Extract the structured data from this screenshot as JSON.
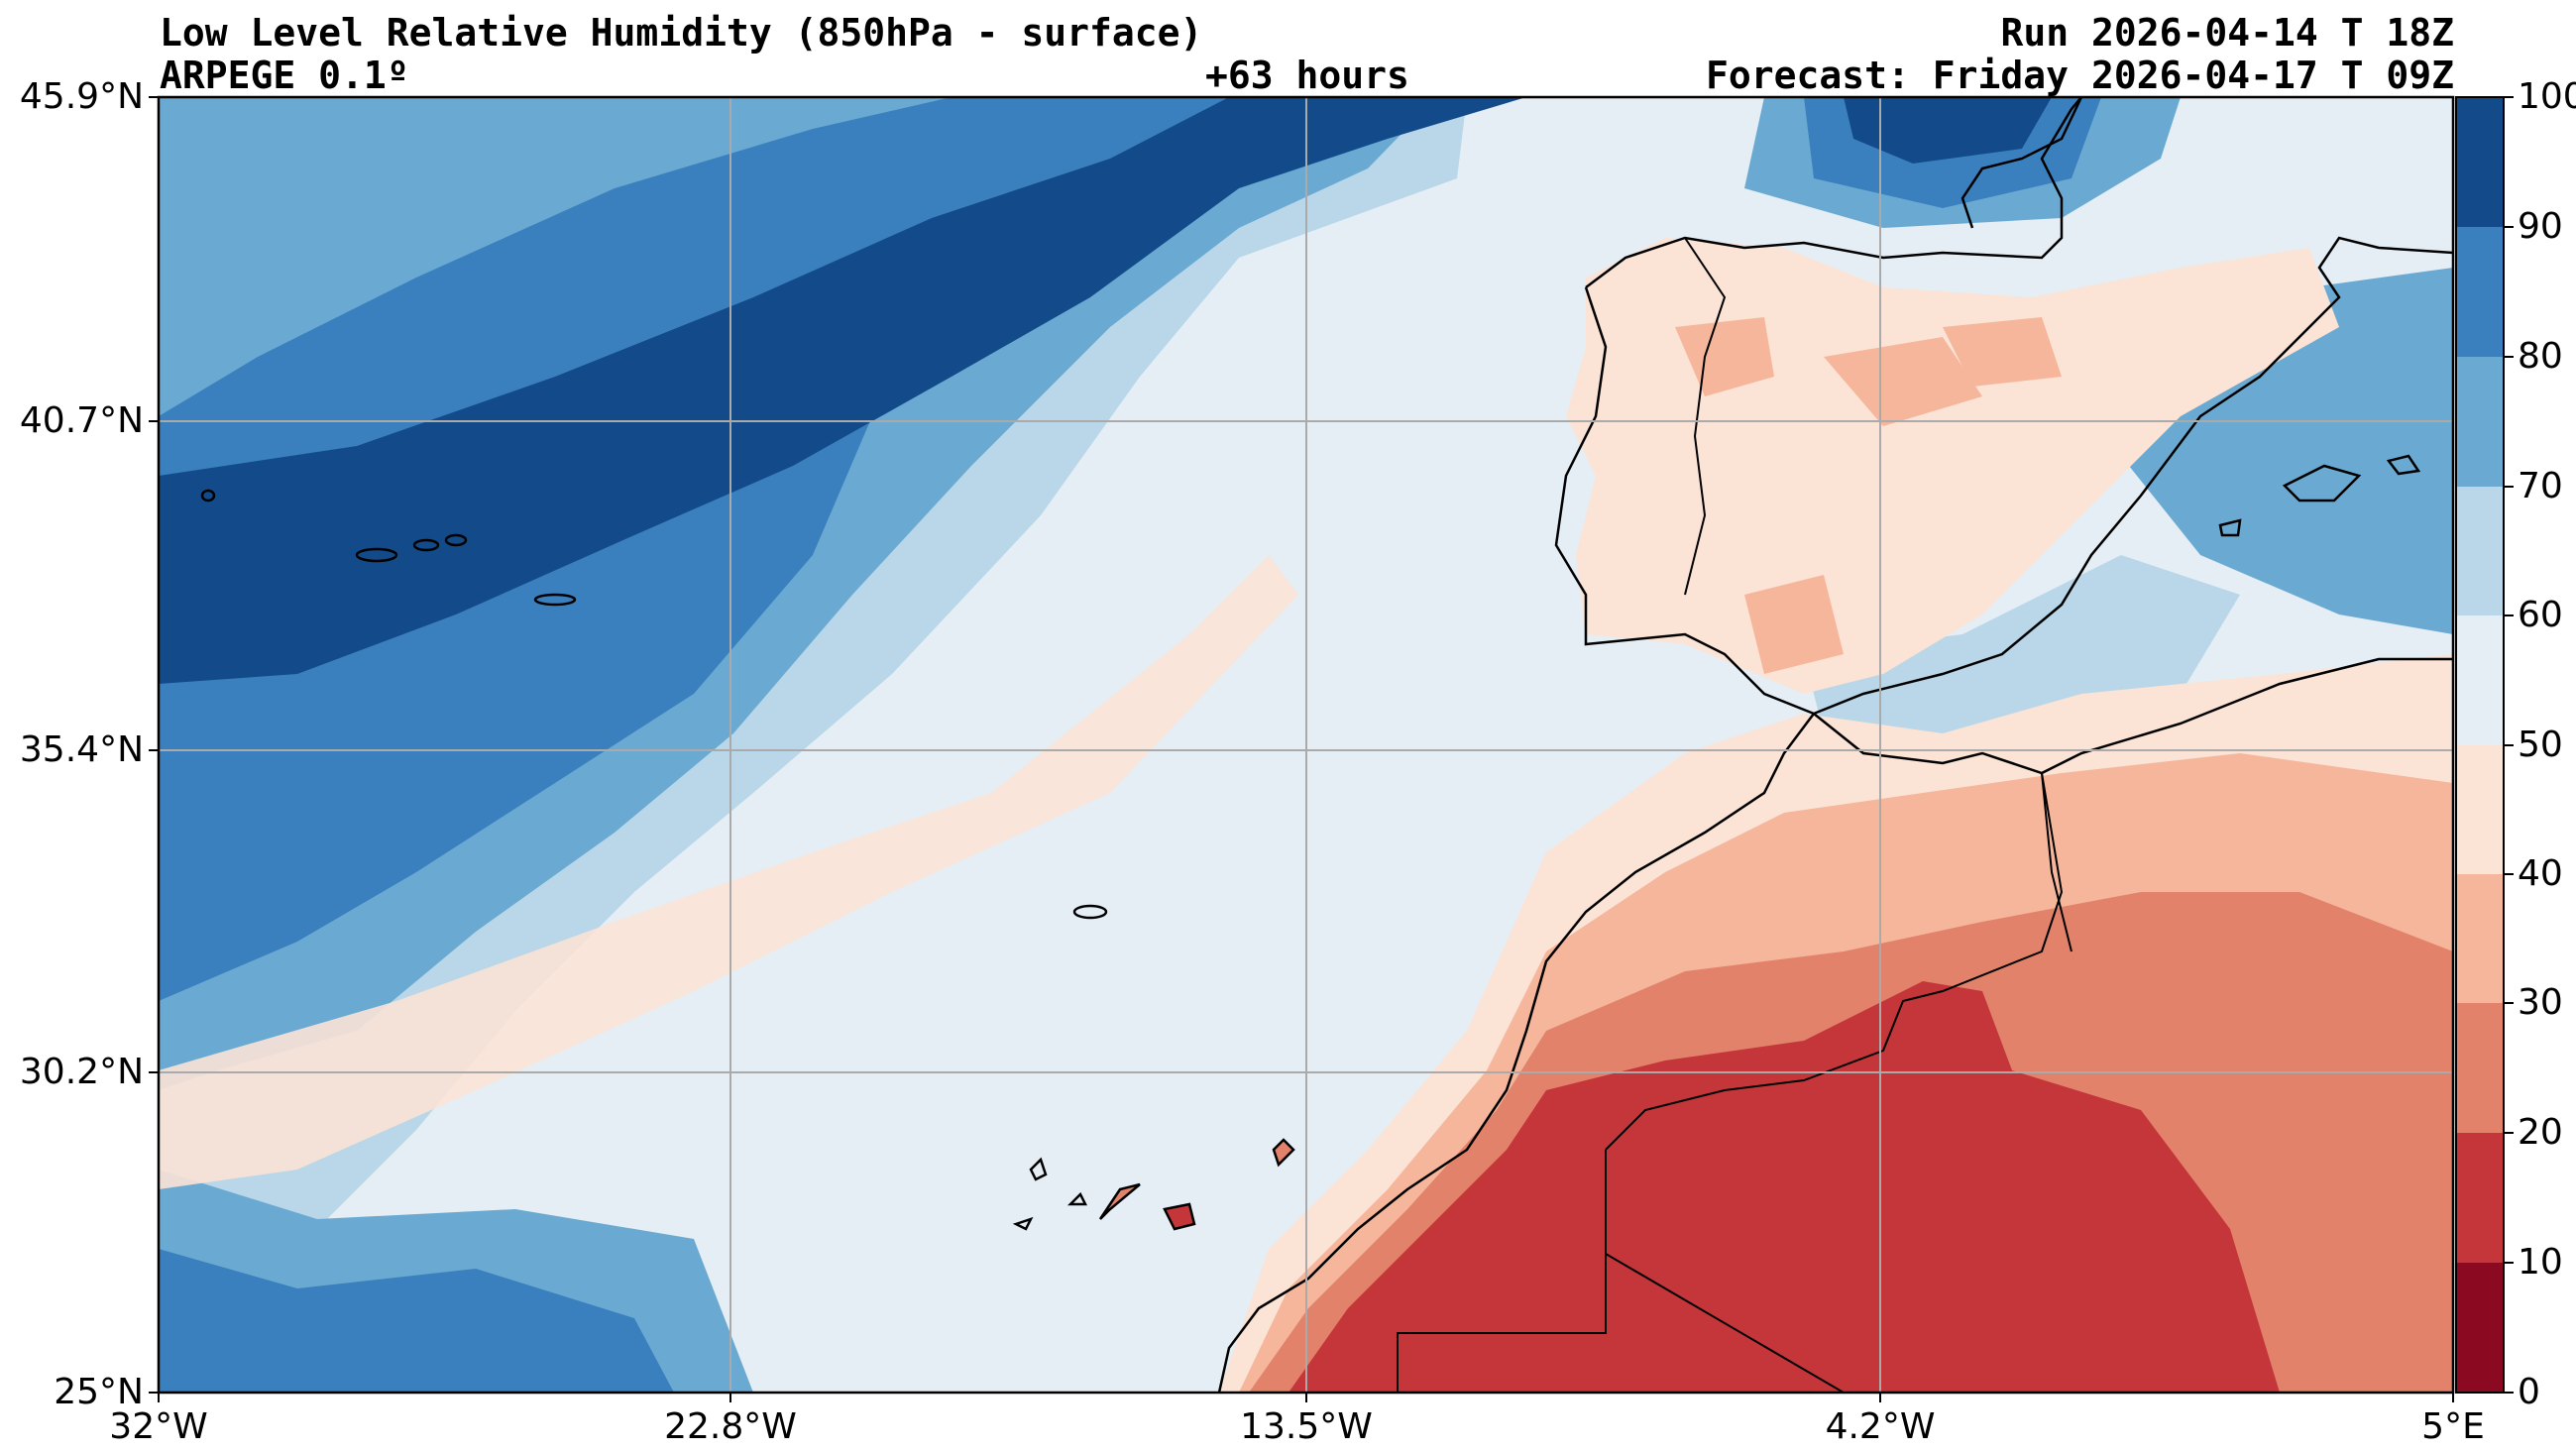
{
  "header": {
    "title_left_1": "Low Level Relative Humidity (850hPa - surface)",
    "title_left_2": "ARPEGE 0.1º",
    "title_center": "+63 hours",
    "title_right_1": "Run 2026-04-14 T 18Z",
    "title_right_2": "Forecast: Friday 2026-04-17 T 09Z"
  },
  "axes": {
    "lat_ticks": [
      "45.9°N",
      "40.7°N",
      "35.4°N",
      "30.2°N",
      "25°N"
    ],
    "lon_ticks": [
      "32°W",
      "22.8°W",
      "13.5°W",
      "4.2°W",
      "5°E"
    ],
    "lat_range": [
      25,
      45.9
    ],
    "lon_range": [
      -32,
      5
    ],
    "grid": true
  },
  "colorbar": {
    "ticks": [
      "100",
      "90",
      "80",
      "70",
      "60",
      "50",
      "40",
      "30",
      "20",
      "10",
      "0"
    ],
    "levels": [
      0,
      10,
      20,
      30,
      40,
      50,
      60,
      70,
      80,
      90,
      100
    ],
    "colors": [
      "#8b0a21",
      "#c4363a",
      "#e2826a",
      "#f6b69b",
      "#fbe3d6",
      "#e5eef5",
      "#b9d7e8",
      "#6aaad2",
      "#3a80be",
      "#134b8a"
    ]
  },
  "map_features": {
    "islands": [
      "Azores",
      "Madeira",
      "Canary Islands",
      "Balearic Islands"
    ]
  }
}
